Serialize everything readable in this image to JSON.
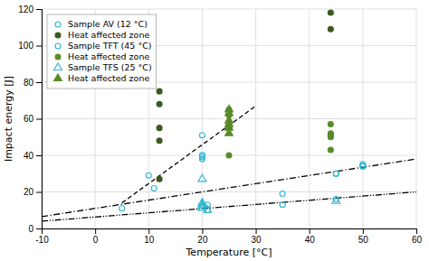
{
  "chart_data": {
    "type": "scatter",
    "xlabel": "Temperature [°C]",
    "ylabel": "Impact energy [J]",
    "xlim": [
      -10,
      60
    ],
    "ylim": [
      0,
      120
    ],
    "xticks": [
      -10,
      0,
      10,
      20,
      30,
      40,
      50,
      60
    ],
    "yticks": [
      0,
      20,
      40,
      60,
      80,
      100,
      120
    ],
    "grid": true,
    "legend": "upper left",
    "series": [
      {
        "name": "Sample AV (12 °C)",
        "type": "scatter",
        "marker": "circle-open",
        "color": "#29b6d4",
        "x": [
          5,
          10,
          11,
          20,
          20,
          21,
          35,
          45,
          45,
          50,
          50
        ],
        "values": [
          11,
          29,
          22,
          51,
          40,
          13,
          19,
          16,
          30,
          35,
          34
        ]
      },
      {
        "name": "Heat affected zone",
        "type": "scatter",
        "marker": "circle",
        "color": "#3d5a1e",
        "x": [
          12,
          12,
          12,
          12,
          12,
          44,
          44
        ],
        "values": [
          75,
          68,
          55,
          48,
          27,
          118,
          109
        ]
      },
      {
        "name": "Sample TFT (45 °C)",
        "type": "scatter",
        "marker": "circle-open",
        "color": "#29b6d4",
        "x": [
          20,
          20,
          20,
          21,
          35,
          45,
          50
        ],
        "values": [
          40,
          39,
          38,
          10,
          13,
          30,
          34
        ]
      },
      {
        "name": "Heat affected zone",
        "type": "scatter",
        "marker": "circle",
        "color": "#5a8a2a",
        "x": [
          25,
          25,
          25,
          25,
          25,
          25,
          44,
          44,
          44,
          44,
          44
        ],
        "values": [
          65,
          62,
          58,
          56,
          55,
          40,
          57,
          52,
          51,
          50,
          43
        ]
      },
      {
        "name": "Sample TFS (25 °C)",
        "type": "scatter",
        "marker": "triangle-open",
        "color": "#29b6d4",
        "x": [
          20,
          20,
          20,
          20,
          20,
          21,
          45
        ],
        "values": [
          27,
          14,
          13,
          12,
          11,
          10,
          15
        ]
      },
      {
        "name": "Heat affected zone",
        "type": "scatter",
        "marker": "triangle",
        "color": "#5a8a2a",
        "x": [
          25,
          25,
          25,
          25,
          25,
          25
        ],
        "values": [
          65,
          63,
          59,
          57,
          55,
          52
        ]
      },
      {
        "type": "line",
        "line_style": "dashdot",
        "color": "#000000",
        "x": [
          -10,
          60
        ],
        "values": [
          6.5,
          38
        ]
      },
      {
        "type": "line",
        "line_style": "dashdotdot",
        "color": "#000000",
        "x": [
          -10,
          60
        ],
        "values": [
          4.0,
          20
        ]
      },
      {
        "type": "line",
        "line_style": "dashed",
        "color": "#000000",
        "x": [
          5,
          30
        ],
        "values": [
          14,
          67
        ]
      }
    ]
  }
}
